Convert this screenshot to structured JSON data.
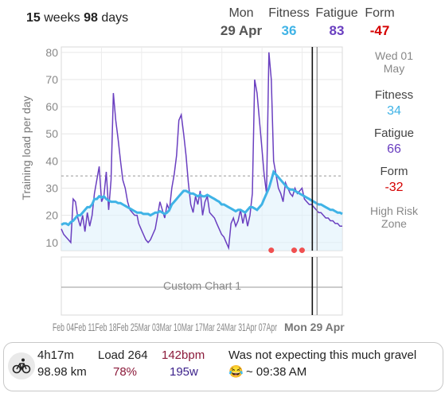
{
  "header": {
    "weeks_num": "15",
    "weeks_label": "weeks",
    "days_num": "98",
    "days_label": "days",
    "day_label": "Mon",
    "date": "29 Apr",
    "fitness_label": "Fitness",
    "fitness_value": "36",
    "fatigue_label": "Fatigue",
    "fatigue_value": "83",
    "form_label": "Form",
    "form_value": "-47"
  },
  "side": {
    "date_line1": "Wed 01",
    "date_line2": "May",
    "fitness_label": "Fitness",
    "fitness_value": "34",
    "fatigue_label": "Fatigue",
    "fatigue_value": "66",
    "form_label": "Form",
    "form_value": "-32",
    "zone_line1": "High Risk",
    "zone_line2": "Zone"
  },
  "custom_chart_label": "Custom Chart 1",
  "x_axis": {
    "crowded_labels": "Feb 04Feb 11Feb 18Feb 25Mar 03Mar 10Mar 17Mar 24Mar 31Apr 07Apr",
    "current_label": "Mon 29 Apr"
  },
  "activity": {
    "icon": "bike-icon",
    "duration": "4h17m",
    "distance": "98.98 km",
    "load_label": "Load 264",
    "load_pct": "78%",
    "hr": "142bpm",
    "power": "195w",
    "title": "Was not expecting this much gravel",
    "emoji": "😂",
    "time": "~ 09:38 AM"
  },
  "colors": {
    "fitness": "#3fb3e6",
    "fatigue": "#6a3fc0",
    "form_negative": "#d50000",
    "hr": "#8b1a3a",
    "power": "#3a1f8a"
  },
  "chart_data": {
    "type": "line",
    "ylabel": "Training load per day",
    "ylim": [
      7,
      82
    ],
    "yticks": [
      10,
      20,
      30,
      40,
      50,
      60,
      70,
      80
    ],
    "grid": true,
    "x": [
      0,
      3,
      6,
      9,
      12,
      15,
      18,
      21,
      24,
      27,
      30,
      33,
      36,
      39,
      42,
      45,
      48,
      51,
      54,
      57,
      60,
      63,
      66,
      69,
      72,
      75,
      78,
      81,
      84,
      87,
      90,
      93,
      96,
      98,
      101,
      104,
      107,
      110,
      113,
      116,
      119,
      122,
      125,
      128,
      131,
      134,
      137,
      140,
      143,
      146,
      149,
      152,
      155,
      158,
      161,
      164,
      167,
      170,
      173,
      176,
      179,
      182,
      185,
      188,
      191,
      194,
      197,
      200,
      203,
      206,
      209,
      212,
      215,
      218,
      221,
      224,
      227,
      230,
      233,
      236,
      239,
      242,
      245,
      248,
      251,
      254,
      257,
      260,
      263,
      266,
      269,
      272,
      275,
      278,
      281,
      284,
      287,
      290,
      293,
      296,
      299,
      302,
      305,
      308,
      311,
      314,
      317,
      320,
      323,
      326,
      329,
      332,
      335,
      338,
      341,
      344,
      347,
      350,
      353,
      356
    ],
    "series": [
      {
        "name": "Fitness",
        "values": [
          16.5,
          17,
          17,
          16.5,
          17.5,
          18,
          19,
          20,
          20,
          21,
          22,
          23,
          23,
          24,
          26,
          26,
          27,
          26.5,
          27,
          26,
          25.5,
          25,
          25,
          25,
          24.5,
          24.5,
          24,
          23.5,
          23,
          22.5,
          22,
          21.5,
          21,
          21,
          21,
          20.5,
          20.5,
          20.5,
          20,
          20.5,
          21,
          21,
          21.5,
          21,
          20.5,
          21,
          22,
          24,
          25,
          26,
          27,
          28,
          29,
          29,
          28.5,
          28,
          28,
          27.5,
          27,
          27.5,
          27,
          27,
          27.5,
          27,
          26.5,
          26,
          25.5,
          25,
          24,
          24,
          23.5,
          23,
          22.5,
          22,
          21.5,
          22,
          22,
          21.5,
          21,
          22,
          23,
          23,
          22.5,
          22,
          23,
          24,
          26,
          28,
          30,
          33,
          36,
          35,
          34,
          33,
          32,
          31,
          30,
          29.5,
          29.5,
          29,
          28.5,
          28,
          27.5,
          27,
          26.5,
          26,
          25.5,
          25,
          24.5,
          24,
          24,
          23.5,
          23,
          22.5,
          22,
          22,
          21.5,
          21,
          21,
          20.5
        ]
      },
      {
        "name": "Fatigue",
        "values": [
          15,
          13,
          12,
          11,
          10,
          26,
          25,
          19,
          16,
          20,
          14,
          21,
          16,
          20,
          28,
          33,
          38,
          25,
          27,
          36,
          22,
          33,
          65,
          55,
          48,
          40,
          33,
          30,
          25,
          22,
          21,
          20,
          20,
          17,
          15,
          13,
          11,
          10,
          11,
          13,
          15,
          20,
          25,
          22,
          19,
          24,
          22,
          30,
          35,
          42,
          55,
          57,
          50,
          42,
          32,
          24,
          21,
          27,
          24,
          29,
          20,
          25,
          27,
          21,
          20,
          19,
          17,
          15,
          13,
          12,
          10,
          8,
          17,
          19,
          16,
          18,
          22,
          17,
          21,
          16,
          20,
          28,
          70,
          65,
          55,
          45,
          35,
          28,
          80,
          70,
          40,
          35,
          30,
          28,
          25,
          32,
          30,
          28,
          27,
          30,
          28,
          29,
          30,
          26,
          25,
          24,
          24,
          23,
          22,
          21,
          21,
          20,
          19,
          19,
          18,
          18,
          17,
          17,
          16,
          16
        ]
      }
    ],
    "threshold_y": 34.5,
    "risk_markers_x": [
      266,
      295,
      305
    ],
    "risk_markers_y": 8,
    "current_x": 318,
    "cursor_x": 324
  }
}
